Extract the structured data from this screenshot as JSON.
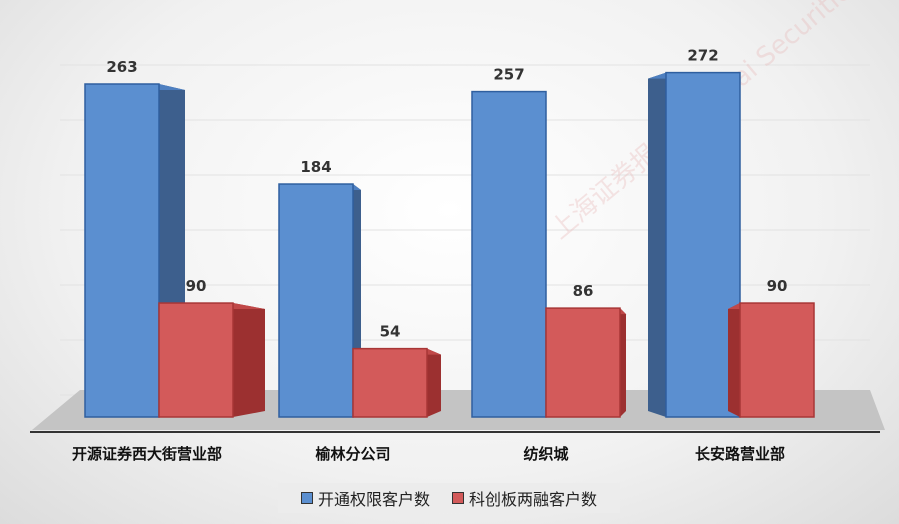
{
  "chart_data": {
    "type": "bar",
    "style": "3d-clustered",
    "categories": [
      "开源证券西大街营业部",
      "榆林分公司",
      "纺织城",
      "长安路营业部"
    ],
    "series": [
      {
        "name": "开通权限客户数",
        "values": [
          263,
          184,
          257,
          272
        ],
        "color": "#5b8fd0"
      },
      {
        "name": "科创板两融客户数",
        "values": [
          90,
          54,
          86,
          90
        ],
        "color": "#d35a5a"
      }
    ],
    "ylim": [
      0,
      300
    ],
    "grid": true,
    "legend": "bottom",
    "data_labels": true
  },
  "watermark": "上海证券报 Shanghai Securities News"
}
